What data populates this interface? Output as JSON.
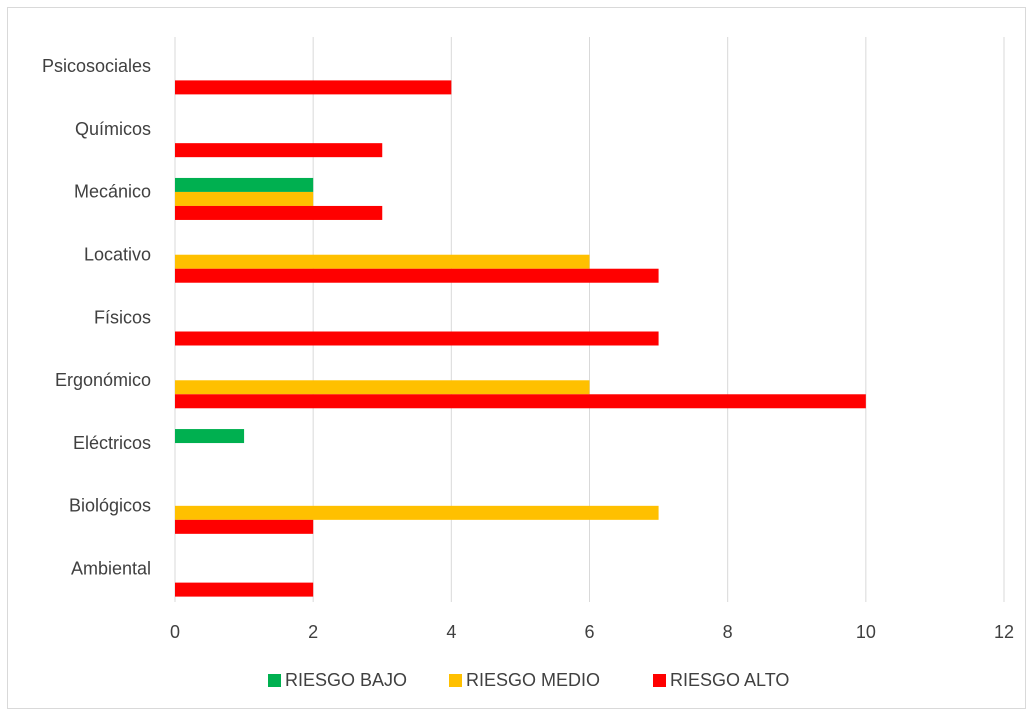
{
  "chart_data": {
    "type": "bar",
    "orientation": "horizontal",
    "categories": [
      "Psicosociales",
      "Químicos",
      "Mecánico",
      "Locativo",
      "Físicos",
      "Ergonómico",
      "Eléctricos",
      "Biológicos",
      "Ambiental"
    ],
    "series": [
      {
        "name": "RIESGO BAJO",
        "color": "#00b050",
        "values": [
          0,
          0,
          2,
          0,
          0,
          0,
          1,
          0,
          0
        ]
      },
      {
        "name": "RIESGO MEDIO",
        "color": "#ffc000",
        "values": [
          0,
          0,
          2,
          6,
          0,
          6,
          0,
          7,
          0
        ]
      },
      {
        "name": "RIESGO ALTO",
        "color": "#ff0000",
        "values": [
          4,
          3,
          3,
          7,
          7,
          10,
          0,
          2,
          2
        ]
      }
    ],
    "xlim": [
      0,
      12
    ],
    "x_ticks": [
      "0",
      "2",
      "4",
      "6",
      "8",
      "10",
      "12"
    ],
    "grid": "vertical",
    "legend_position": "bottom"
  }
}
